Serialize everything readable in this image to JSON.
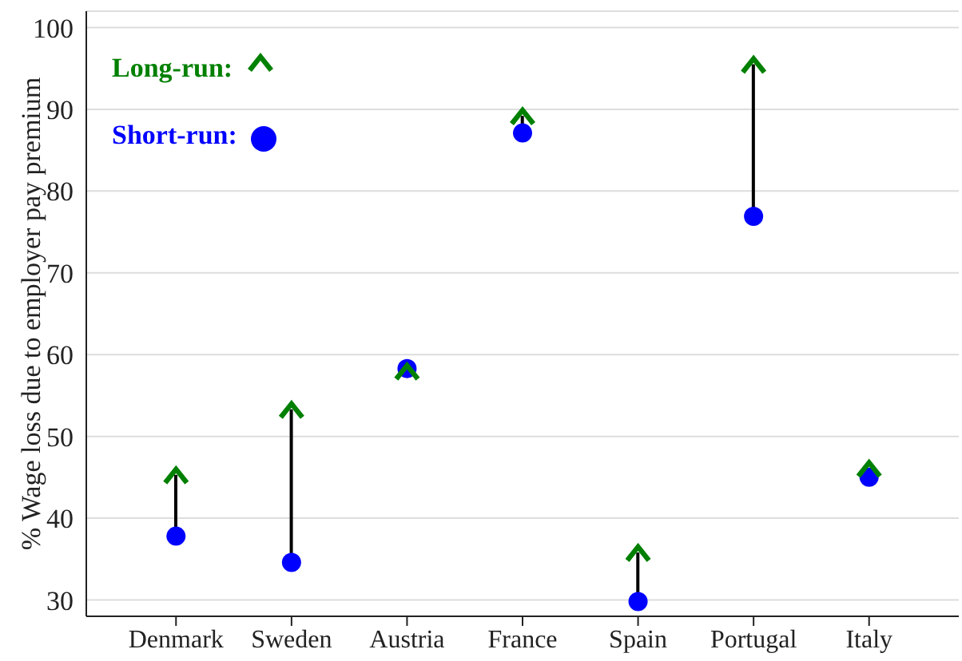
{
  "chart_data": {
    "type": "scatter",
    "ylabel": "% Wage loss due to employer pay premium",
    "categories": [
      "Denmark",
      "Sweden",
      "Austria",
      "France",
      "Spain",
      "Portugal",
      "Italy"
    ],
    "series": [
      {
        "name": "Short-run:",
        "color": "#0000ff",
        "marker": "circle",
        "values": [
          37.8,
          34.6,
          58.3,
          87.1,
          29.8,
          76.9,
          45.0
        ]
      },
      {
        "name": "Long-run:",
        "color": "#008000",
        "marker": "triangle",
        "values": [
          45.3,
          53.3,
          58.0,
          89.2,
          35.8,
          95.5,
          46.1
        ]
      }
    ],
    "ylim": [
      28,
      102
    ],
    "yticks": [
      30,
      40,
      50,
      60,
      70,
      80,
      90,
      100
    ],
    "grid": "y",
    "legend": "top left"
  }
}
